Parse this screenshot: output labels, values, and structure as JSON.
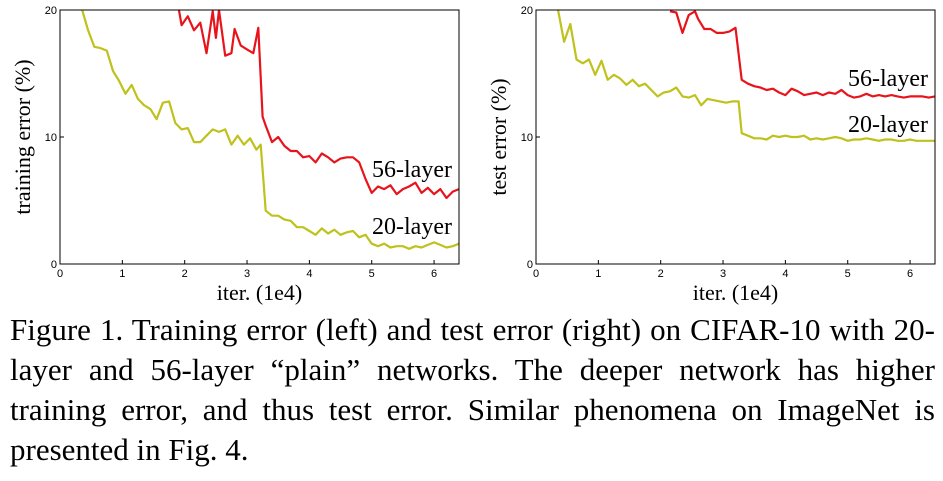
{
  "chart_data": [
    {
      "type": "line",
      "xlabel": "iter. (1e4)",
      "ylabel": "training error (%)",
      "xlim": [
        0,
        6.4
      ],
      "ylim": [
        0,
        20
      ],
      "xticks": [
        "0",
        "1",
        "2",
        "3",
        "4",
        "5",
        "6"
      ],
      "yticks": [
        "0",
        "10",
        "20"
      ],
      "grid": false,
      "series": [
        {
          "name": "56-layer",
          "color": "#e8141c",
          "x": [
            1.9,
            1.95,
            2.05,
            2.15,
            2.25,
            2.35,
            2.45,
            2.5,
            2.55,
            2.65,
            2.75,
            2.8,
            2.9,
            3.0,
            3.1,
            3.18,
            3.25,
            3.3,
            3.4,
            3.5,
            3.6,
            3.7,
            3.8,
            3.9,
            4.0,
            4.1,
            4.2,
            4.3,
            4.4,
            4.5,
            4.6,
            4.7,
            4.8,
            4.9,
            5.0,
            5.1,
            5.2,
            5.3,
            5.4,
            5.5,
            5.6,
            5.7,
            5.8,
            5.9,
            6.0,
            6.1,
            6.2,
            6.3,
            6.4
          ],
          "y": [
            20.2,
            18.8,
            19.5,
            18.4,
            19.0,
            16.6,
            19.9,
            17.8,
            20.0,
            16.4,
            16.6,
            18.5,
            17.2,
            16.9,
            16.6,
            18.6,
            11.6,
            10.9,
            9.6,
            10.0,
            9.3,
            8.9,
            8.9,
            8.4,
            8.5,
            8.0,
            8.7,
            8.4,
            8.0,
            8.3,
            8.4,
            8.4,
            8.0,
            6.7,
            5.6,
            6.1,
            5.9,
            6.2,
            5.5,
            5.9,
            6.1,
            6.4,
            5.6,
            6.0,
            5.5,
            5.9,
            5.2,
            5.7,
            5.9
          ]
        },
        {
          "name": "20-layer",
          "color": "#bfc21c",
          "x": [
            0.35,
            0.45,
            0.55,
            0.65,
            0.75,
            0.85,
            0.95,
            1.05,
            1.15,
            1.25,
            1.35,
            1.45,
            1.55,
            1.65,
            1.75,
            1.85,
            1.95,
            2.05,
            2.15,
            2.25,
            2.35,
            2.45,
            2.55,
            2.65,
            2.75,
            2.85,
            2.95,
            3.05,
            3.15,
            3.22,
            3.3,
            3.4,
            3.5,
            3.6,
            3.7,
            3.8,
            3.9,
            4.0,
            4.1,
            4.2,
            4.3,
            4.4,
            4.5,
            4.6,
            4.7,
            4.8,
            4.9,
            5.0,
            5.1,
            5.2,
            5.3,
            5.4,
            5.5,
            5.6,
            5.7,
            5.8,
            5.9,
            6.0,
            6.1,
            6.2,
            6.3,
            6.4
          ],
          "y": [
            20.1,
            18.4,
            17.1,
            17.0,
            16.8,
            15.2,
            14.4,
            13.4,
            14.1,
            13.0,
            12.5,
            12.2,
            11.4,
            12.7,
            12.8,
            11.1,
            10.6,
            10.7,
            9.6,
            9.6,
            10.1,
            10.6,
            10.4,
            10.6,
            9.4,
            10.1,
            9.4,
            9.9,
            9.0,
            9.4,
            4.2,
            3.8,
            3.8,
            3.5,
            3.4,
            2.9,
            2.9,
            2.6,
            2.3,
            2.8,
            2.4,
            2.7,
            2.3,
            2.5,
            2.6,
            2.1,
            2.3,
            1.6,
            1.4,
            1.6,
            1.3,
            1.4,
            1.4,
            1.2,
            1.4,
            1.3,
            1.5,
            1.7,
            1.5,
            1.3,
            1.4,
            1.6
          ]
        }
      ],
      "annotations": [
        "56-layer",
        "20-layer"
      ]
    },
    {
      "type": "line",
      "xlabel": "iter. (1e4)",
      "ylabel": "test error (%)",
      "xlim": [
        0,
        6.4
      ],
      "ylim": [
        0,
        20
      ],
      "xticks": [
        "0",
        "1",
        "2",
        "3",
        "4",
        "5",
        "6"
      ],
      "yticks": [
        "0",
        "10",
        "20"
      ],
      "grid": false,
      "series": [
        {
          "name": "56-layer",
          "color": "#e8141c",
          "x": [
            2.15,
            2.25,
            2.35,
            2.45,
            2.55,
            2.6,
            2.7,
            2.8,
            2.9,
            3.0,
            3.1,
            3.2,
            3.3,
            3.4,
            3.5,
            3.6,
            3.7,
            3.8,
            3.9,
            4.0,
            4.1,
            4.2,
            4.3,
            4.4,
            4.5,
            4.6,
            4.7,
            4.8,
            4.9,
            5.0,
            5.1,
            5.2,
            5.3,
            5.4,
            5.5,
            5.6,
            5.7,
            5.8,
            5.9,
            6.0,
            6.1,
            6.2,
            6.3,
            6.4
          ],
          "y": [
            19.9,
            19.8,
            18.2,
            19.6,
            19.9,
            19.3,
            18.5,
            18.5,
            18.2,
            18.2,
            18.3,
            18.6,
            14.5,
            14.2,
            14.0,
            13.9,
            13.7,
            13.8,
            13.5,
            13.3,
            13.8,
            13.6,
            13.3,
            13.4,
            13.5,
            13.3,
            13.5,
            13.4,
            13.7,
            13.3,
            13.1,
            13.2,
            13.4,
            13.2,
            13.3,
            13.2,
            13.3,
            13.2,
            13.1,
            13.2,
            13.2,
            13.2,
            13.1,
            13.2
          ]
        },
        {
          "name": "20-layer",
          "color": "#bfc21c",
          "x": [
            0.35,
            0.45,
            0.55,
            0.65,
            0.75,
            0.85,
            0.95,
            1.05,
            1.15,
            1.25,
            1.35,
            1.45,
            1.55,
            1.65,
            1.75,
            1.85,
            1.95,
            2.05,
            2.15,
            2.25,
            2.35,
            2.45,
            2.55,
            2.65,
            2.75,
            2.85,
            2.95,
            3.05,
            3.15,
            3.25,
            3.3,
            3.4,
            3.5,
            3.6,
            3.7,
            3.8,
            3.9,
            4.0,
            4.1,
            4.2,
            4.3,
            4.4,
            4.5,
            4.6,
            4.7,
            4.8,
            4.9,
            5.0,
            5.1,
            5.2,
            5.3,
            5.4,
            5.5,
            5.6,
            5.7,
            5.8,
            5.9,
            6.0,
            6.1,
            6.2,
            6.3,
            6.4
          ],
          "y": [
            20.1,
            17.5,
            18.9,
            16.1,
            15.8,
            16.1,
            14.9,
            16.0,
            14.5,
            14.9,
            14.6,
            14.1,
            14.5,
            14.0,
            14.2,
            13.7,
            13.2,
            13.5,
            13.6,
            13.9,
            13.2,
            13.1,
            13.3,
            12.5,
            13.0,
            12.9,
            12.8,
            12.7,
            12.8,
            12.8,
            10.3,
            10.1,
            9.9,
            9.9,
            9.8,
            10.1,
            10.0,
            10.1,
            10.0,
            10.0,
            10.1,
            9.8,
            9.9,
            9.8,
            9.9,
            10.0,
            9.9,
            9.7,
            9.8,
            9.8,
            9.9,
            9.8,
            9.7,
            9.8,
            9.8,
            9.7,
            9.7,
            9.8,
            9.7,
            9.7,
            9.7,
            9.7
          ]
        }
      ],
      "annotations": [
        "56-layer",
        "20-layer"
      ]
    }
  ],
  "caption": "Figure 1. Training error (left) and test error (right) on CIFAR-10 with 20-layer and 56-layer “plain” networks. The deeper network has higher training error, and thus test error. Similar phenomena on ImageNet is presented in Fig. 4."
}
